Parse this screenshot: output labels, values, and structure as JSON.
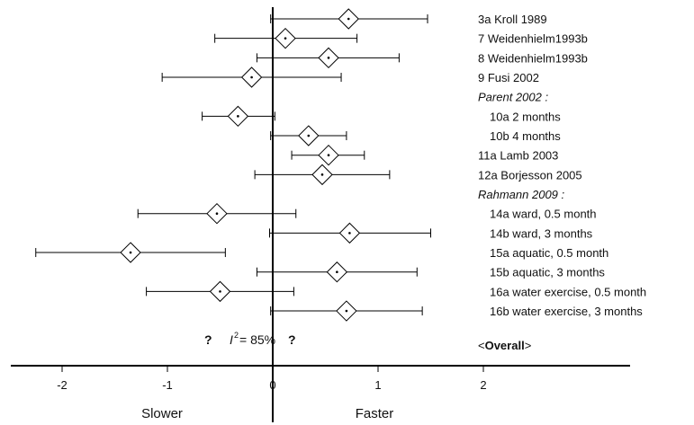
{
  "chart_data": {
    "type": "forest",
    "xlim": [
      -2.4,
      2.4
    ],
    "x_ticks": [
      "-2",
      "-1",
      "0",
      "1",
      "2"
    ],
    "x_tick_values": [
      -2,
      -1,
      0,
      1,
      2
    ],
    "left_label": "Slower",
    "right_label": "Faster",
    "heterogeneity": {
      "prefix": "?",
      "symbol": "I",
      "exponent": "2",
      "text": "= 85%",
      "suffix": "?"
    },
    "overall_label": "<Overall>",
    "rows": [
      {
        "label": "3a  Kroll 1989",
        "point": 0.72,
        "lower": -0.02,
        "upper": 1.47,
        "italic": false
      },
      {
        "label": "7   Weidenhielm1993b",
        "point": 0.12,
        "lower": -0.55,
        "upper": 0.8,
        "italic": false
      },
      {
        "label": "8   Weidenhielm1993b",
        "point": 0.53,
        "lower": -0.15,
        "upper": 1.2,
        "italic": false
      },
      {
        "label": "9   Fusi 2002",
        "point": -0.2,
        "lower": -1.05,
        "upper": 0.65,
        "italic": false
      },
      {
        "label": "Parent 2002 :",
        "point": null,
        "italic": true
      },
      {
        "label": "10a  2 months",
        "point": -0.33,
        "lower": -0.67,
        "upper": 0.02,
        "italic": false,
        "indent": true
      },
      {
        "label": "10b  4 months",
        "point": 0.34,
        "lower": -0.02,
        "upper": 0.7,
        "italic": false,
        "indent": true
      },
      {
        "label": "11a  Lamb 2003",
        "point": 0.53,
        "lower": 0.18,
        "upper": 0.87,
        "italic": false
      },
      {
        "label": "12a  Borjesson 2005",
        "point": 0.47,
        "lower": -0.17,
        "upper": 1.11,
        "italic": false
      },
      {
        "label": "Rahmann 2009 :",
        "point": null,
        "italic": true
      },
      {
        "label": "14a  ward, 0.5 month",
        "point": -0.53,
        "lower": -1.28,
        "upper": 0.22,
        "italic": false,
        "indent": true
      },
      {
        "label": "14b  ward, 3 months",
        "point": 0.73,
        "lower": -0.03,
        "upper": 1.5,
        "italic": false,
        "indent": true
      },
      {
        "label": "15a  aquatic, 0.5 month",
        "point": -1.35,
        "lower": -2.25,
        "upper": -0.45,
        "italic": false,
        "indent": true
      },
      {
        "label": "15b  aquatic, 3 months",
        "point": 0.61,
        "lower": -0.15,
        "upper": 1.37,
        "italic": false,
        "indent": true
      },
      {
        "label": "16a  water exercise, 0.5 month",
        "point": -0.5,
        "lower": -1.2,
        "upper": 0.2,
        "italic": false,
        "indent": true
      },
      {
        "label": "16b  water exercise, 3 months",
        "point": 0.7,
        "lower": -0.02,
        "upper": 1.42,
        "italic": false,
        "indent": true
      }
    ]
  }
}
